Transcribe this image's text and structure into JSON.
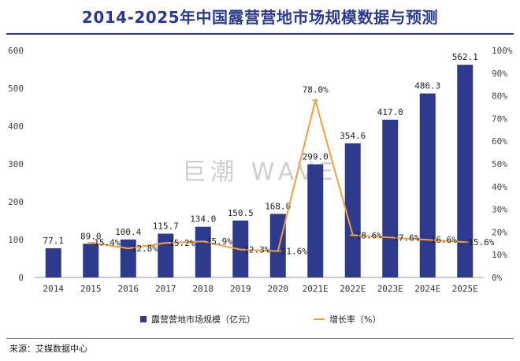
{
  "title": "2014-2025年中国露营营地市场规模数据与预测",
  "source": "来源：艾媒数据中心",
  "watermark": "巨潮 WAVE",
  "colors": {
    "bar": "#2e3a8c",
    "line": "#f0a040",
    "title": "#2b3a8c"
  },
  "chart_data": {
    "type": "bar",
    "categories": [
      "2014",
      "2015",
      "2016",
      "2017",
      "2018",
      "2019",
      "2020",
      "2021E",
      "2022E",
      "2023E",
      "2024E",
      "2025E"
    ],
    "series": [
      {
        "name": "露营营地市场规模（亿元）",
        "type": "bar",
        "axis": "left",
        "values": [
          77.1,
          89.0,
          100.4,
          115.7,
          134.0,
          150.5,
          168.0,
          299.0,
          354.6,
          417.0,
          486.3,
          562.1
        ],
        "labels": [
          "77.1",
          "89.0",
          "100.4",
          "115.7",
          "134.0",
          "150.5",
          "168.0",
          "299.0",
          "354.6",
          "417.0",
          "486.3",
          "562.1"
        ]
      },
      {
        "name": "增长率（%）",
        "type": "line",
        "axis": "right",
        "values": [
          null,
          15.4,
          12.8,
          15.2,
          15.9,
          12.3,
          11.6,
          78.0,
          18.6,
          17.6,
          16.6,
          15.6
        ],
        "labels": [
          "",
          "15.4%",
          "12.8%",
          "15.2%",
          "15.9%",
          "12.3%",
          "11.6%",
          "78.0%",
          "18.6%",
          "17.6%",
          "16.6%",
          "15.6%"
        ]
      }
    ],
    "y_left": {
      "min": 0,
      "max": 600,
      "ticks": [
        "0",
        "100",
        "200",
        "300",
        "400",
        "500",
        "600"
      ]
    },
    "y_right": {
      "min": 0,
      "max": 100,
      "ticks": [
        "0%",
        "10%",
        "20%",
        "30%",
        "40%",
        "50%",
        "60%",
        "70%",
        "80%",
        "90%",
        "100%"
      ]
    },
    "grid": false,
    "legend_position": "bottom"
  }
}
